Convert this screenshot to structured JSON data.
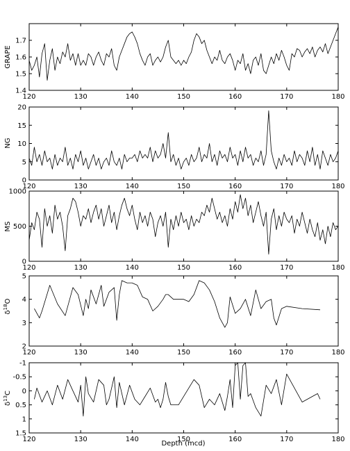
{
  "chart_data": [
    {
      "type": "line",
      "ylabel": "GRAPE",
      "xlim": [
        120,
        180
      ],
      "ylim": [
        1.4,
        1.8
      ],
      "xticks": [
        120,
        130,
        140,
        150,
        160,
        170,
        180
      ],
      "xtick_labels": [
        "120",
        "130",
        "140",
        "150",
        "160",
        "170",
        "180"
      ],
      "yticks": [
        1.4,
        1.5,
        1.6,
        1.7
      ],
      "ytick_labels": [
        "1.4",
        "1.5",
        "1.6",
        "1.7"
      ],
      "x": [
        120.0,
        120.5,
        121.0,
        121.5,
        122.0,
        122.5,
        123.0,
        123.5,
        124.0,
        124.5,
        125.0,
        125.5,
        126.0,
        126.5,
        127.0,
        127.5,
        128.0,
        128.5,
        129.0,
        129.5,
        130.0,
        130.5,
        131.0,
        131.5,
        132.0,
        132.5,
        133.0,
        133.5,
        134.0,
        134.5,
        135.0,
        135.5,
        136.0,
        136.5,
        137.0,
        137.5,
        138.0,
        138.5,
        139.0,
        139.5,
        140.0,
        140.5,
        141.0,
        141.5,
        142.0,
        142.5,
        143.0,
        143.5,
        144.0,
        144.5,
        145.0,
        145.5,
        146.0,
        146.5,
        147.0,
        147.5,
        148.0,
        148.5,
        149.0,
        149.5,
        150.0,
        150.5,
        151.0,
        151.5,
        152.0,
        152.5,
        153.0,
        153.5,
        154.0,
        154.5,
        155.0,
        155.5,
        156.0,
        156.5,
        157.0,
        157.5,
        158.0,
        158.5,
        159.0,
        159.5,
        160.0,
        160.5,
        161.0,
        161.5,
        162.0,
        162.5,
        163.0,
        163.5,
        164.0,
        164.5,
        165.0,
        165.5,
        166.0,
        166.5,
        167.0,
        167.5,
        168.0,
        168.5,
        169.0,
        169.5,
        170.0,
        170.5,
        171.0,
        171.5,
        172.0,
        172.5,
        173.0,
        173.5,
        174.0,
        174.5,
        175.0,
        175.5,
        176.0,
        176.5,
        177.0,
        177.5,
        178.0,
        178.5,
        179.0,
        179.5,
        180.0
      ],
      "y": [
        1.58,
        1.52,
        1.55,
        1.6,
        1.48,
        1.62,
        1.68,
        1.46,
        1.58,
        1.65,
        1.52,
        1.6,
        1.56,
        1.63,
        1.6,
        1.68,
        1.58,
        1.62,
        1.55,
        1.62,
        1.55,
        1.58,
        1.55,
        1.62,
        1.6,
        1.55,
        1.6,
        1.63,
        1.58,
        1.55,
        1.62,
        1.6,
        1.65,
        1.55,
        1.52,
        1.6,
        1.64,
        1.68,
        1.72,
        1.74,
        1.75,
        1.72,
        1.68,
        1.62,
        1.58,
        1.55,
        1.6,
        1.62,
        1.55,
        1.58,
        1.6,
        1.57,
        1.6,
        1.66,
        1.7,
        1.6,
        1.58,
        1.56,
        1.58,
        1.55,
        1.58,
        1.56,
        1.6,
        1.63,
        1.7,
        1.74,
        1.72,
        1.68,
        1.7,
        1.64,
        1.6,
        1.56,
        1.6,
        1.58,
        1.64,
        1.58,
        1.56,
        1.6,
        1.62,
        1.58,
        1.52,
        1.58,
        1.56,
        1.62,
        1.52,
        1.56,
        1.5,
        1.58,
        1.6,
        1.55,
        1.62,
        1.52,
        1.5,
        1.55,
        1.6,
        1.56,
        1.62,
        1.58,
        1.64,
        1.6,
        1.55,
        1.52,
        1.62,
        1.6,
        1.65,
        1.64,
        1.6,
        1.63,
        1.65,
        1.62,
        1.66,
        1.6,
        1.64,
        1.66,
        1.63,
        1.68,
        1.62,
        1.66,
        1.7,
        1.74,
        1.78
      ]
    },
    {
      "type": "line",
      "ylabel": "NG",
      "xlim": [
        120,
        180
      ],
      "ylim": [
        0,
        20
      ],
      "xticks": [
        120,
        130,
        140,
        150,
        160,
        170,
        180
      ],
      "xtick_labels": [
        "120",
        "130",
        "140",
        "150",
        "160",
        "170",
        "180"
      ],
      "yticks": [
        0,
        5,
        10,
        15,
        20
      ],
      "ytick_labels": [
        "0",
        "5",
        "10",
        "15",
        "20"
      ],
      "x": [
        120.0,
        120.5,
        121.0,
        121.5,
        122.0,
        122.5,
        123.0,
        123.5,
        124.0,
        124.5,
        125.0,
        125.5,
        126.0,
        126.5,
        127.0,
        127.5,
        128.0,
        128.5,
        129.0,
        129.5,
        130.0,
        130.5,
        131.0,
        131.5,
        132.0,
        132.5,
        133.0,
        133.5,
        134.0,
        134.5,
        135.0,
        135.5,
        136.0,
        136.5,
        137.0,
        137.5,
        138.0,
        138.5,
        139.0,
        139.5,
        140.0,
        140.5,
        141.0,
        141.5,
        142.0,
        142.5,
        143.0,
        143.5,
        144.0,
        144.5,
        145.0,
        145.5,
        146.0,
        146.5,
        147.0,
        147.5,
        148.0,
        148.5,
        149.0,
        149.5,
        150.0,
        150.5,
        151.0,
        151.5,
        152.0,
        152.5,
        153.0,
        153.5,
        154.0,
        154.5,
        155.0,
        155.5,
        156.0,
        156.5,
        157.0,
        157.5,
        158.0,
        158.5,
        159.0,
        159.5,
        160.0,
        160.5,
        161.0,
        161.5,
        162.0,
        162.5,
        163.0,
        163.5,
        164.0,
        164.5,
        165.0,
        165.5,
        166.0,
        166.5,
        167.0,
        167.5,
        168.0,
        168.5,
        169.0,
        169.5,
        170.0,
        170.5,
        171.0,
        171.5,
        172.0,
        172.5,
        173.0,
        173.5,
        174.0,
        174.5,
        175.0,
        175.5,
        176.0,
        176.5,
        177.0,
        177.5,
        178.0,
        178.5,
        179.0,
        179.5,
        180.0
      ],
      "y": [
        6,
        4,
        9,
        5,
        7,
        4,
        8,
        5,
        6,
        3,
        7,
        4,
        6,
        5,
        9,
        4,
        6,
        3,
        7,
        5,
        8,
        4,
        6,
        3,
        5,
        7,
        4,
        6,
        3,
        5,
        6,
        4,
        8,
        5,
        4,
        6,
        3,
        7,
        5,
        6,
        6,
        7,
        5,
        8,
        6,
        7,
        6,
        9,
        5,
        8,
        6,
        7,
        10,
        6,
        13,
        5,
        7,
        4,
        6,
        3,
        5,
        6,
        4,
        7,
        5,
        6,
        9,
        5,
        7,
        6,
        10,
        5,
        7,
        4,
        8,
        6,
        7,
        5,
        9,
        6,
        7,
        4,
        8,
        5,
        9,
        6,
        7,
        4,
        6,
        5,
        8,
        4,
        7,
        19,
        8,
        5,
        3,
        6,
        4,
        7,
        5,
        6,
        4,
        8,
        5,
        7,
        6,
        4,
        8,
        5,
        9,
        4,
        7,
        3,
        8,
        6,
        4,
        7,
        5,
        6,
        8
      ]
    },
    {
      "type": "line",
      "ylabel": "MS",
      "xlim": [
        120,
        180
      ],
      "ylim": [
        0,
        1000
      ],
      "xticks": [
        120,
        130,
        140,
        150,
        160,
        170,
        180
      ],
      "xtick_labels": [
        "120",
        "130",
        "140",
        "150",
        "160",
        "170",
        "180"
      ],
      "yticks": [
        0,
        500,
        1000
      ],
      "ytick_labels": [
        "0",
        "500",
        "1000"
      ],
      "x": [
        120.0,
        120.5,
        121.0,
        121.5,
        122.0,
        122.5,
        123.0,
        123.5,
        124.0,
        124.5,
        125.0,
        125.5,
        126.0,
        126.5,
        127.0,
        127.5,
        128.0,
        128.5,
        129.0,
        129.5,
        130.0,
        130.5,
        131.0,
        131.5,
        132.0,
        132.5,
        133.0,
        133.5,
        134.0,
        134.5,
        135.0,
        135.5,
        136.0,
        136.5,
        137.0,
        137.5,
        138.0,
        138.5,
        139.0,
        139.5,
        140.0,
        140.5,
        141.0,
        141.5,
        142.0,
        142.5,
        143.0,
        143.5,
        144.0,
        144.5,
        145.0,
        145.5,
        146.0,
        146.5,
        147.0,
        147.5,
        148.0,
        148.5,
        149.0,
        149.5,
        150.0,
        150.5,
        151.0,
        151.5,
        152.0,
        152.5,
        153.0,
        153.5,
        154.0,
        154.5,
        155.0,
        155.5,
        156.0,
        156.5,
        157.0,
        157.5,
        158.0,
        158.5,
        159.0,
        159.5,
        160.0,
        160.5,
        161.0,
        161.5,
        162.0,
        162.5,
        163.0,
        163.5,
        164.0,
        164.5,
        165.0,
        165.5,
        166.0,
        166.5,
        167.0,
        167.5,
        168.0,
        168.5,
        169.0,
        169.5,
        170.0,
        170.5,
        171.0,
        171.5,
        172.0,
        172.5,
        173.0,
        173.5,
        174.0,
        174.5,
        175.0,
        175.5,
        176.0,
        176.5,
        177.0,
        177.5,
        178.0,
        178.5,
        179.0,
        179.5,
        180.0
      ],
      "y": [
        300,
        550,
        450,
        700,
        600,
        200,
        750,
        500,
        650,
        400,
        800,
        600,
        700,
        500,
        150,
        650,
        750,
        900,
        850,
        700,
        500,
        650,
        600,
        750,
        550,
        700,
        800,
        600,
        750,
        500,
        650,
        800,
        550,
        700,
        450,
        650,
        800,
        900,
        750,
        650,
        800,
        600,
        450,
        700,
        550,
        650,
        500,
        700,
        600,
        350,
        550,
        650,
        500,
        700,
        200,
        600,
        450,
        650,
        500,
        700,
        550,
        600,
        450,
        650,
        500,
        600,
        550,
        700,
        650,
        800,
        700,
        900,
        750,
        600,
        700,
        550,
        650,
        500,
        750,
        600,
        850,
        700,
        950,
        750,
        900,
        650,
        800,
        550,
        700,
        850,
        650,
        500,
        700,
        100,
        600,
        750,
        450,
        650,
        500,
        700,
        600,
        550,
        650,
        400,
        600,
        500,
        700,
        550,
        400,
        600,
        450,
        350,
        550,
        300,
        450,
        250,
        500,
        350,
        550,
        450,
        500
      ]
    },
    {
      "type": "line",
      "ylabel": "δ18O",
      "ylabel_base": "δ",
      "ylabel_sup": "18",
      "ylabel_tail": "O",
      "xlim": [
        120,
        180
      ],
      "ylim": [
        2,
        5
      ],
      "xticks": [
        120,
        130,
        140,
        150,
        160,
        170,
        180
      ],
      "xtick_labels": [
        "120",
        "130",
        "140",
        "150",
        "160",
        "170",
        "180"
      ],
      "yticks": [
        2,
        3,
        4,
        5
      ],
      "ytick_labels": [
        "2",
        "3",
        "4",
        "5"
      ],
      "x": [
        121.0,
        122.0,
        122.5,
        124.0,
        125.5,
        127.0,
        128.5,
        129.5,
        130.5,
        131.0,
        131.5,
        132.0,
        133.0,
        134.0,
        134.5,
        135.5,
        136.5,
        137.0,
        137.5,
        138.0,
        139.0,
        140.0,
        141.0,
        142.0,
        143.0,
        144.0,
        145.0,
        146.0,
        146.5,
        147.0,
        148.0,
        150.0,
        151.0,
        152.0,
        153.0,
        154.0,
        155.0,
        156.0,
        157.0,
        158.0,
        158.5,
        159.0,
        160.0,
        161.0,
        162.0,
        163.0,
        164.0,
        165.0,
        166.0,
        167.0,
        167.5,
        168.0,
        169.0,
        170.0,
        173.0,
        176.5
      ],
      "y": [
        3.6,
        3.2,
        3.5,
        4.6,
        3.8,
        3.3,
        4.5,
        4.2,
        3.3,
        4.0,
        3.6,
        4.4,
        3.8,
        4.6,
        3.7,
        4.3,
        4.5,
        3.1,
        4.2,
        4.8,
        4.7,
        4.7,
        4.6,
        4.1,
        4.0,
        3.5,
        3.7,
        4.0,
        4.2,
        4.2,
        4.0,
        4.0,
        3.9,
        4.2,
        4.8,
        4.7,
        4.4,
        3.9,
        3.2,
        2.8,
        3.0,
        4.1,
        3.4,
        3.6,
        4.0,
        3.3,
        4.4,
        3.6,
        3.9,
        4.0,
        3.2,
        2.9,
        3.6,
        3.7,
        3.6,
        3.55
      ]
    },
    {
      "type": "line",
      "ylabel": "δ13C",
      "ylabel_base": "δ",
      "ylabel_sup": "13",
      "ylabel_tail": "C",
      "xlim": [
        120,
        180
      ],
      "ylim": [
        1.5,
        -1
      ],
      "y_reversed": true,
      "xlabel": "Depth (mcd)",
      "xticks": [
        120,
        130,
        140,
        150,
        160,
        170,
        180
      ],
      "xtick_labels": [
        "120",
        "130",
        "140",
        "150",
        "160",
        "170",
        "180"
      ],
      "yticks": [
        -1,
        -0.5,
        0,
        0.5,
        1,
        1.5
      ],
      "ytick_labels": [
        "-1",
        "-0.5",
        "0",
        "0.5",
        "1",
        "1.5"
      ],
      "x": [
        121.0,
        121.5,
        122.5,
        123.5,
        124.5,
        125.5,
        126.5,
        127.5,
        128.5,
        129.5,
        130.0,
        130.5,
        131.0,
        131.5,
        132.5,
        133.5,
        134.5,
        135.0,
        135.5,
        136.5,
        137.0,
        137.5,
        138.5,
        139.5,
        140.5,
        141.5,
        142.5,
        143.5,
        144.5,
        145.0,
        145.5,
        146.0,
        146.5,
        147.0,
        147.5,
        149.0,
        152.0,
        153.0,
        154.0,
        155.0,
        156.0,
        157.0,
        158.0,
        158.5,
        159.0,
        159.5,
        160.0,
        160.5,
        161.0,
        161.5,
        162.0,
        162.5,
        163.0,
        164.0,
        165.0,
        166.0,
        167.0,
        168.0,
        169.0,
        170.0,
        173.0,
        176.0,
        176.5
      ],
      "y": [
        0.3,
        -0.1,
        0.4,
        0.0,
        0.5,
        -0.2,
        0.3,
        -0.4,
        0.0,
        0.4,
        -0.2,
        0.9,
        -0.5,
        0.1,
        0.4,
        -0.4,
        -0.2,
        0.5,
        0.3,
        -0.5,
        0.6,
        -0.3,
        0.5,
        -0.2,
        0.3,
        0.5,
        0.2,
        -0.1,
        0.4,
        0.3,
        0.6,
        0.3,
        -0.3,
        0.2,
        0.5,
        0.5,
        -0.4,
        -0.2,
        0.6,
        0.3,
        0.5,
        0.1,
        0.7,
        0.2,
        -0.4,
        0.6,
        -0.9,
        -1.0,
        0.3,
        -0.9,
        -1.0,
        0.2,
        0.1,
        0.6,
        0.9,
        -0.2,
        0.1,
        -0.4,
        0.5,
        -0.6,
        0.4,
        0.1,
        0.3
      ]
    }
  ]
}
